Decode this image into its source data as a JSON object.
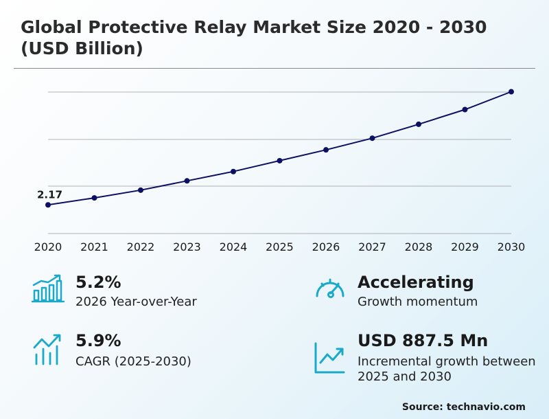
{
  "title": "Global Protective Relay Market Size 2020 - 2030 (USD Billion)",
  "chart_data": {
    "type": "line",
    "categories": [
      "2020",
      "2021",
      "2022",
      "2023",
      "2024",
      "2025",
      "2026",
      "2027",
      "2028",
      "2029",
      "2030"
    ],
    "values": [
      2.17,
      2.26,
      2.36,
      2.48,
      2.6,
      2.74,
      2.88,
      3.03,
      3.21,
      3.4,
      3.63
    ],
    "data_labels": [
      "2.17"
    ],
    "ylim": [
      1.8,
      3.75
    ],
    "grid": true,
    "line_color": "#0d1060",
    "xlabel": "",
    "ylabel": ""
  },
  "stats": [
    {
      "value": "5.2%",
      "label": "2026 Year-over-Year",
      "icon": "bar-chart-growth-icon"
    },
    {
      "value": "Accelerating",
      "label": "Growth momentum",
      "icon": "speedometer-icon"
    },
    {
      "value": "5.9%",
      "label": "CAGR (2025-2030)",
      "icon": "trend-bars-icon"
    },
    {
      "value": "USD 887.5 Mn",
      "label": "Incremental growth between 2025 and 2030",
      "icon": "rising-line-icon"
    }
  ],
  "accent_color": "#1aa9c8",
  "source": "Source: technavio.com"
}
